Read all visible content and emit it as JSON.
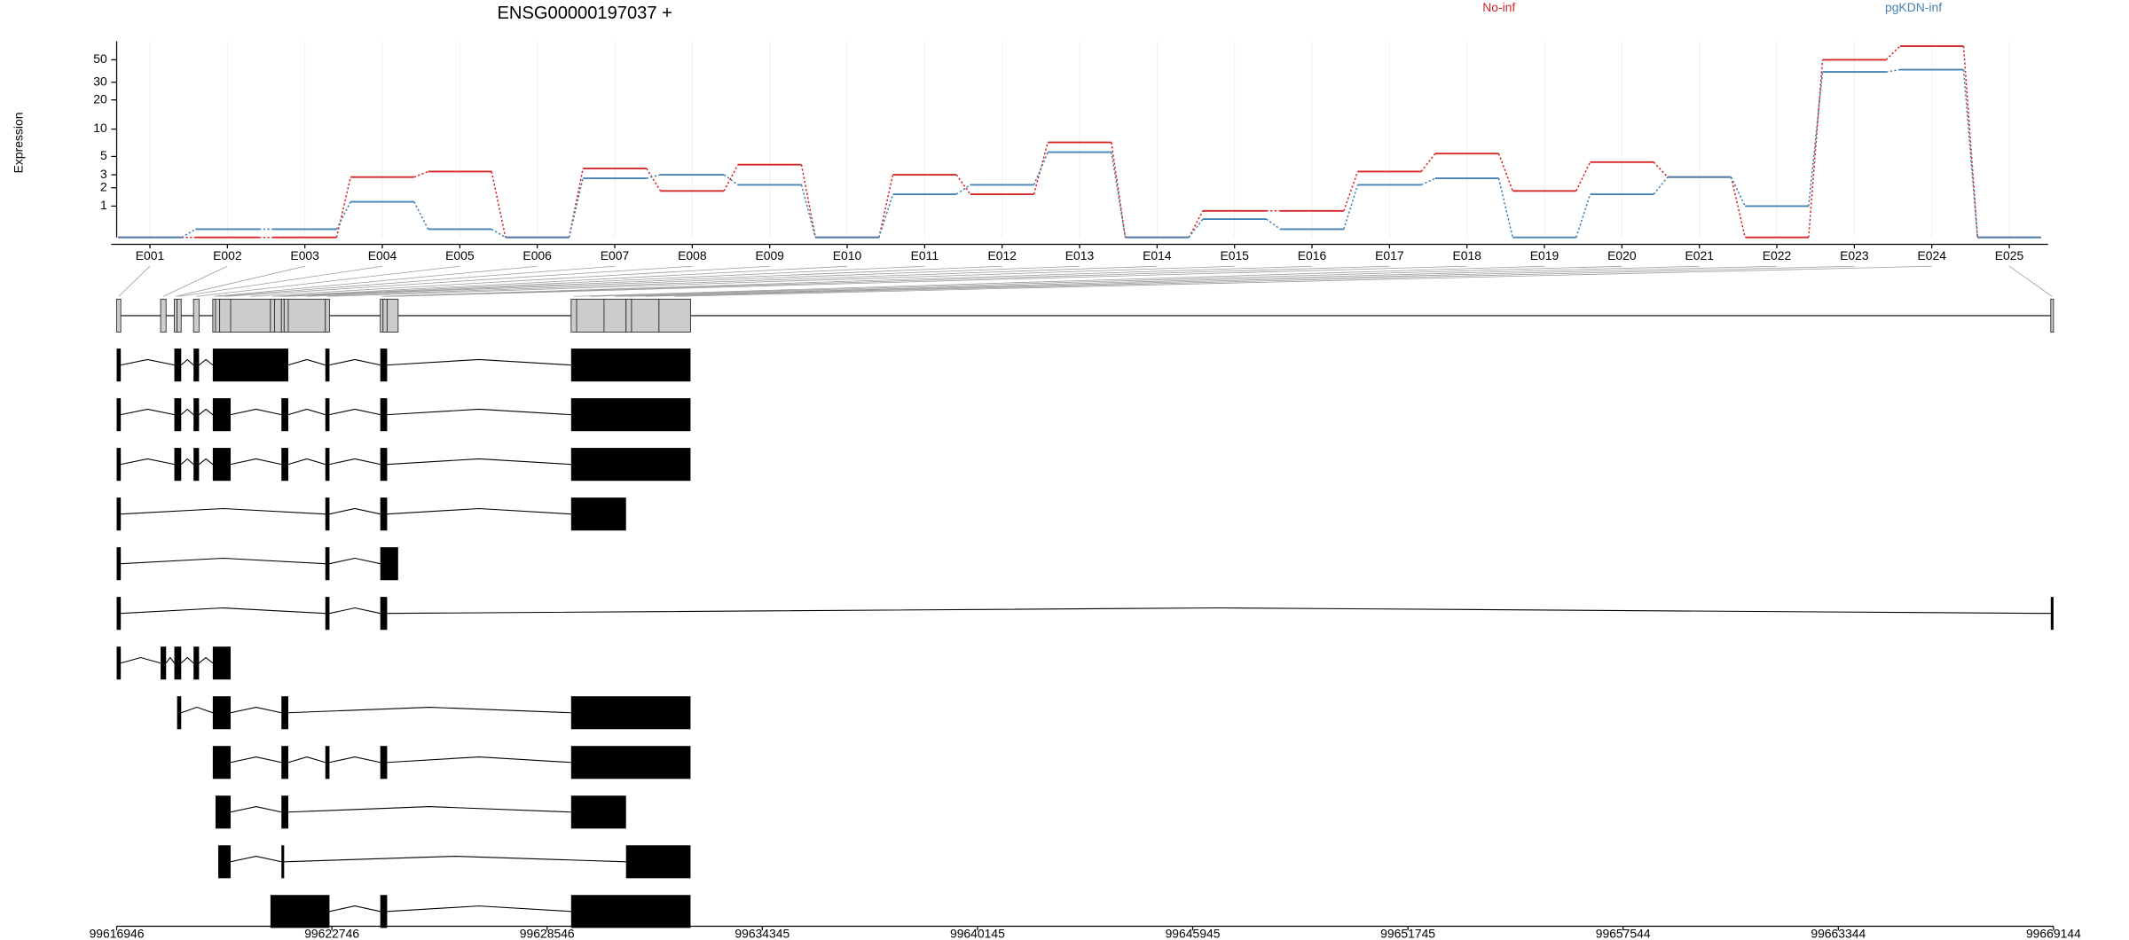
{
  "chart_data": [
    {
      "type": "line",
      "title": "ENSG00000197037 +",
      "ylabel": "Expression",
      "categories": [
        "E001",
        "E002",
        "E003",
        "E004",
        "E005",
        "E006",
        "E007",
        "E008",
        "E009",
        "E010",
        "E011",
        "E012",
        "E013",
        "E014",
        "E015",
        "E016",
        "E017",
        "E018",
        "E019",
        "E020",
        "E021",
        "E022",
        "E023",
        "E024",
        "E025"
      ],
      "series": [
        {
          "name": "No-inf",
          "color": "#d62728",
          "values": [
            0,
            0,
            0,
            2.8,
            3.3,
            0,
            3.6,
            1.8,
            4.0,
            0,
            3.0,
            1.6,
            7.2,
            0,
            0.8,
            0.8,
            3.3,
            5.4,
            1.8,
            4.3,
            2.8,
            0,
            50,
            68,
            0
          ]
        },
        {
          "name": "pgKDN-inf",
          "color": "#4682b4",
          "values": [
            0,
            0.2,
            0.2,
            1.2,
            0.2,
            0,
            2.7,
            3.0,
            2.2,
            0,
            1.6,
            2.2,
            5.6,
            0,
            0.5,
            0.2,
            2.2,
            2.7,
            0,
            1.6,
            2.8,
            1.0,
            38,
            40,
            0
          ]
        }
      ],
      "ylim": [
        0,
        76
      ],
      "yticks": [
        1,
        2,
        3,
        5,
        10,
        20,
        30,
        50
      ],
      "log_scale": true,
      "grid": true,
      "legend": "top"
    },
    {
      "type": "gene-model",
      "xlim": [
        99616946,
        99669144
      ],
      "xticks": [
        99616946,
        99622746,
        99628546,
        99634345,
        99640145,
        99645945,
        99651745,
        99657544,
        99663344,
        99669144
      ],
      "exon_bins": [
        [
          99616946,
          99617057
        ],
        [
          99618130,
          99618278
        ],
        [
          99618500,
          99618574
        ],
        [
          99618574,
          99618685
        ],
        [
          99619018,
          99619166
        ],
        [
          99619536,
          99619610
        ],
        [
          99619610,
          99619721
        ],
        [
          99619721,
          99620017
        ],
        [
          99620017,
          99621090
        ],
        [
          99621090,
          99621201
        ],
        [
          99621201,
          99621386
        ],
        [
          99621386,
          99621460
        ],
        [
          99621460,
          99621571
        ],
        [
          99621571,
          99622570
        ],
        [
          99622570,
          99622681
        ],
        [
          99624050,
          99624124
        ],
        [
          99624124,
          99624235
        ],
        [
          99624235,
          99624531
        ],
        [
          99629193,
          99629341
        ],
        [
          99629341,
          99630081
        ],
        [
          99630081,
          99630673
        ],
        [
          99630673,
          99630821
        ],
        [
          99630821,
          99631561
        ],
        [
          99631561,
          99632412
        ],
        [
          99669070,
          99669144
        ]
      ],
      "transcripts": [
        [
          [
            99616946,
            99617057
          ],
          [
            99618500,
            99618685
          ],
          [
            99619018,
            99619166
          ],
          [
            99619536,
            99621571
          ],
          [
            99622570,
            99622681
          ],
          [
            99624050,
            99624235
          ],
          [
            99629193,
            99632412
          ]
        ],
        [
          [
            99616946,
            99617057
          ],
          [
            99618500,
            99618685
          ],
          [
            99619018,
            99619166
          ],
          [
            99619536,
            99620017
          ],
          [
            99621386,
            99621571
          ],
          [
            99622570,
            99622681
          ],
          [
            99624050,
            99624235
          ],
          [
            99629193,
            99632412
          ]
        ],
        [
          [
            99616946,
            99617057
          ],
          [
            99618500,
            99618685
          ],
          [
            99619018,
            99619166
          ],
          [
            99619536,
            99620017
          ],
          [
            99621386,
            99621571
          ],
          [
            99622570,
            99622681
          ],
          [
            99624050,
            99624235
          ],
          [
            99629193,
            99632412
          ]
        ],
        [
          [
            99616946,
            99617057
          ],
          [
            99622570,
            99622681
          ],
          [
            99624050,
            99624235
          ],
          [
            99629193,
            99630673
          ]
        ],
        [
          [
            99616946,
            99617057
          ],
          [
            99622570,
            99622681
          ],
          [
            99624050,
            99624531
          ]
        ],
        [
          [
            99616946,
            99617057
          ],
          [
            99622570,
            99622681
          ],
          [
            99624050,
            99624235
          ],
          [
            99669070,
            99669144
          ]
        ],
        [
          [
            99616946,
            99617057
          ],
          [
            99618130,
            99618278
          ],
          [
            99618500,
            99618685
          ],
          [
            99619018,
            99619166
          ],
          [
            99619536,
            99620017
          ]
        ],
        [
          [
            99618574,
            99618685
          ],
          [
            99619536,
            99620017
          ],
          [
            99621386,
            99621571
          ],
          [
            99629193,
            99632412
          ]
        ],
        [
          [
            99619536,
            99620017
          ],
          [
            99621386,
            99621571
          ],
          [
            99622570,
            99622681
          ],
          [
            99624050,
            99624235
          ],
          [
            99629193,
            99632412
          ]
        ],
        [
          [
            99619610,
            99620017
          ],
          [
            99621386,
            99621571
          ],
          [
            99629193,
            99630673
          ]
        ],
        [
          [
            99619684,
            99620017
          ],
          [
            99621386,
            99621460
          ],
          [
            99630673,
            99632412
          ]
        ],
        [
          [
            99621090,
            99622681
          ],
          [
            99624050,
            99624235
          ],
          [
            99629193,
            99632412
          ]
        ]
      ]
    }
  ]
}
